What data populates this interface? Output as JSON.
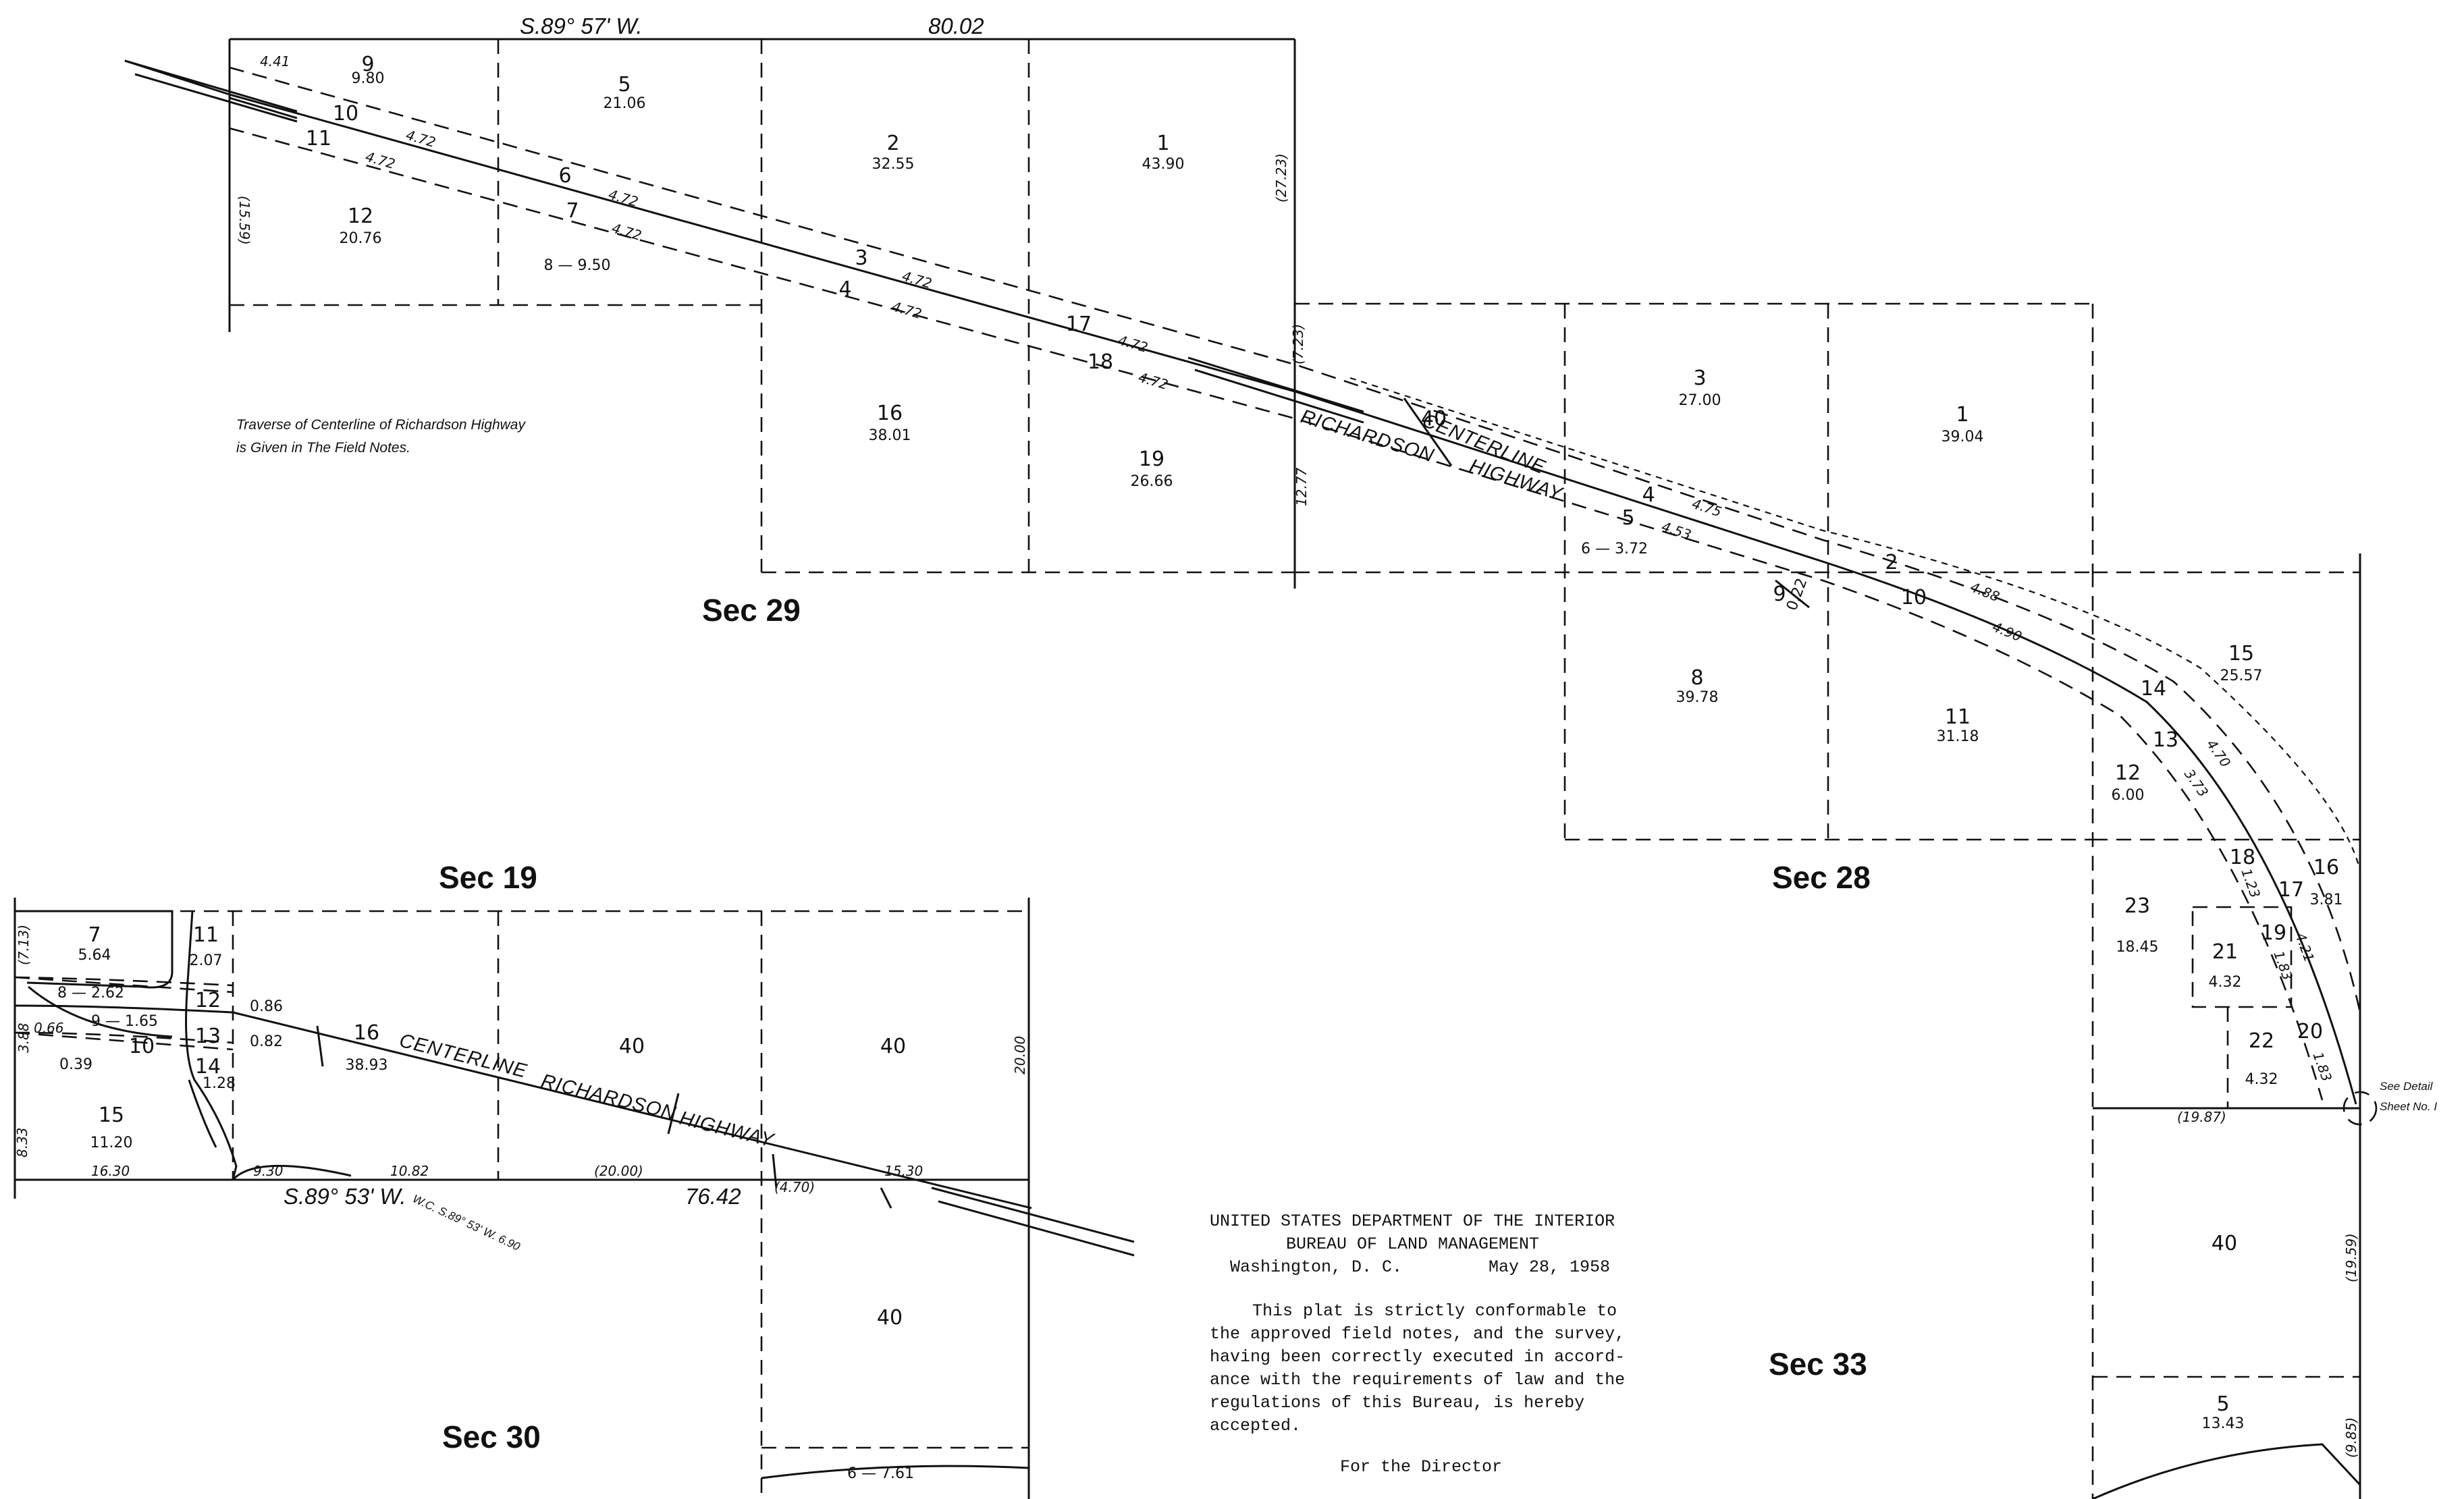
{
  "sections": {
    "sec29": "Sec 29",
    "sec19": "Sec 19",
    "sec28": "Sec 28",
    "sec30": "Sec 30",
    "sec33": "Sec 33"
  },
  "top_bearing": "S.89° 57' W.",
  "top_distance": "80.02",
  "bottom_bearing": "S.89° 53' W.",
  "bottom_distance": "76.42",
  "wc_note": "W.C. S.89° 53' W. 6.90",
  "traverse_note": {
    "line1": "Traverse of Centerline of Richardson Highway",
    "line2": "is Given in The Field Notes."
  },
  "highway": {
    "richardson": "RICHARDSON",
    "centerline": "CENTERLINE",
    "highway": "HIGHWAY"
  },
  "see_detail": {
    "line1": "See Detail",
    "line2": "Sheet No. I"
  },
  "certificate": {
    "line1": "UNITED STATES DEPARTMENT OF THE INTERIOR",
    "line2": "BUREAU OF LAND MANAGEMENT",
    "city": "Washington, D. C.",
    "date": "May 28, 1958",
    "body1": "This plat is strictly conformable to",
    "body2": "the approved field notes, and the survey,",
    "body3": "having been correctly executed in accord-",
    "body4": "ance with the requirements of law and the",
    "body5": "regulations of this Bureau, is hereby",
    "body6": "accepted.",
    "signature": "For the Director"
  },
  "sec29_lots": [
    {
      "lot": "9",
      "area": "9.80"
    },
    {
      "lot": "5",
      "area": "21.06"
    },
    {
      "lot": "2",
      "area": "32.55"
    },
    {
      "lot": "1",
      "area": "43.90"
    },
    {
      "lot": "12",
      "area": "20.76"
    },
    {
      "lot": "16",
      "area": "38.01"
    },
    {
      "lot": "19",
      "area": "26.66"
    },
    {
      "lot": "8",
      "area": "8 — 9.50"
    }
  ],
  "sec29_line_lots": {
    "l10": "10",
    "l11": "11",
    "l6": "6",
    "l7": "7",
    "l3": "3",
    "l4": "4",
    "l17": "17",
    "l18": "18",
    "l40": "40",
    "d472": "4.72",
    "d441": "4.41"
  },
  "sec29_edges": {
    "w": "(15.59)",
    "e1": "(27.23)",
    "e2": "(7.23)",
    "e3": "12.77"
  },
  "sec28_lots": [
    {
      "lot": "3",
      "area": "27.00"
    },
    {
      "lot": "1",
      "area": "39.04"
    },
    {
      "lot": "8",
      "area": "39.78"
    },
    {
      "lot": "11",
      "area": "31.18"
    },
    {
      "lot": "15",
      "area": "25.57"
    },
    {
      "lot": "12",
      "area": "6.00"
    },
    {
      "lot": "16",
      "area": "3.81"
    },
    {
      "lot": "23",
      "area": "18.45"
    },
    {
      "lot": "21",
      "area": "4.32"
    },
    {
      "lot": "22",
      "area": "4.32"
    }
  ],
  "sec28_line_lots": {
    "l4": "4",
    "l5": "5",
    "l6": "6 — 3.72",
    "l9": "9",
    "d022": "0.22",
    "l2": "2",
    "l10": "10",
    "l14": "14",
    "l13": "13",
    "l18": "18",
    "l17": "17",
    "l19": "19",
    "l20": "20",
    "d475": "4.75",
    "d453": "4.53",
    "d488": "4.88",
    "d490": "4.90",
    "d470": "4.70",
    "d373": "3.73",
    "d123": "1.23",
    "d421": "4.21",
    "d183a": "1.83",
    "d183b": "1.83",
    "d1987": "(19.87)"
  },
  "sec33": {
    "lot40": "40",
    "lot5": "5",
    "area5": "13.43",
    "e1": "(19.59)",
    "e2": "(9.85)"
  },
  "sec30_lots": [
    {
      "lot": "7",
      "area": "5.64"
    },
    {
      "lot": "11",
      "area": "2.07"
    },
    {
      "lot": "15",
      "area": "11.20"
    },
    {
      "lot": "16",
      "area": "38.93"
    },
    {
      "lot": "40a",
      "area": "40"
    },
    {
      "lot": "40b",
      "area": "40"
    },
    {
      "lot": "40c",
      "area": "40"
    }
  ],
  "sec30_small": {
    "l8": "8 — 2.62",
    "l9": "9 — 1.65",
    "l10": "10",
    "l12": "12",
    "d086": "0.86",
    "l13": "13",
    "d082": "0.82",
    "l14": "14",
    "d128": "1.28",
    "d066": "0.66",
    "d039": "0.39",
    "d713": "(7.13)",
    "d388": "3.88",
    "d833": "8.33",
    "d1630": "16.30",
    "d930": "9.30",
    "d1082": "10.82",
    "d2000p": "(20.00)",
    "d470p": "(4.70)",
    "d1530": "15.30",
    "d2000": "20.00",
    "l6": "6 — 7.61"
  }
}
